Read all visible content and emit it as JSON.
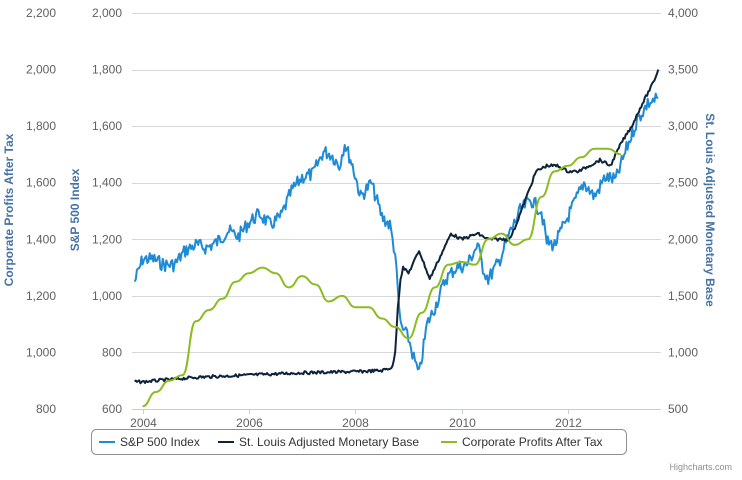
{
  "chart_data": {
    "type": "line",
    "credits": "Highcharts.com",
    "x_axis": {
      "range": [
        2003.8,
        2013.75
      ],
      "ticks": [
        2004,
        2006,
        2008,
        2010,
        2012
      ],
      "tick_labels": [
        "2004",
        "2006",
        "2008",
        "2010",
        "2012"
      ]
    },
    "y_axes": [
      {
        "id": "profits",
        "title": "Corporate Profits After Tax",
        "range": [
          800,
          2200
        ],
        "ticks": [
          800,
          1000,
          1200,
          1400,
          1600,
          1800,
          2000,
          2200
        ],
        "tick_labels": [
          "800",
          "1,000",
          "1,200",
          "1,400",
          "1,600",
          "1,800",
          "2,000",
          "2,200"
        ],
        "color": "#4572A7"
      },
      {
        "id": "sp500",
        "title": "S&P 500 Index",
        "range": [
          600,
          2000
        ],
        "ticks": [
          600,
          800,
          1000,
          1200,
          1400,
          1600,
          1800,
          2000
        ],
        "tick_labels": [
          "600",
          "800",
          "1,000",
          "1,200",
          "1,400",
          "1,600",
          "1,800",
          "2,000"
        ],
        "color": "#4572A7"
      },
      {
        "id": "base",
        "title": "St. Louis Adjusted Monetary Base",
        "range": [
          500,
          4000
        ],
        "ticks": [
          500,
          1000,
          1500,
          2000,
          2500,
          3000,
          3500,
          4000
        ],
        "tick_labels": [
          "500",
          "1,000",
          "1,500",
          "2,000",
          "2,500",
          "3,000",
          "3,500",
          "4,000"
        ],
        "color": "#4572A7",
        "opposite": true
      }
    ],
    "grid": true,
    "legend_position": "bottom-center",
    "series": [
      {
        "name": "S&P 500 Index",
        "axis": "sp500",
        "color": "#1f8ad6",
        "x": [
          2003.85,
          2004.0,
          2004.2,
          2004.4,
          2004.6,
          2004.8,
          2005.0,
          2005.2,
          2005.4,
          2005.6,
          2005.8,
          2006.0,
          2006.2,
          2006.4,
          2006.6,
          2006.8,
          2007.0,
          2007.2,
          2007.4,
          2007.55,
          2007.7,
          2007.8,
          2007.95,
          2008.1,
          2008.3,
          2008.5,
          2008.65,
          2008.75,
          2008.8,
          2008.85,
          2008.9,
          2009.0,
          2009.1,
          2009.2,
          2009.35,
          2009.5,
          2009.7,
          2009.9,
          2010.1,
          2010.3,
          2010.4,
          2010.5,
          2010.7,
          2010.9,
          2011.1,
          2011.3,
          2011.5,
          2011.6,
          2011.75,
          2011.9,
          2012.1,
          2012.3,
          2012.5,
          2012.7,
          2012.9,
          2013.1,
          2013.3,
          2013.5,
          2013.6,
          2013.7
        ],
        "values": [
          1050,
          1130,
          1130,
          1110,
          1110,
          1160,
          1180,
          1170,
          1190,
          1230,
          1210,
          1260,
          1290,
          1250,
          1280,
          1370,
          1420,
          1430,
          1510,
          1500,
          1460,
          1540,
          1460,
          1350,
          1400,
          1280,
          1250,
          1150,
          1010,
          900,
          880,
          850,
          780,
          720,
          900,
          960,
          1060,
          1100,
          1110,
          1180,
          1100,
          1060,
          1120,
          1220,
          1300,
          1340,
          1300,
          1190,
          1180,
          1240,
          1320,
          1400,
          1350,
          1420,
          1410,
          1520,
          1620,
          1680,
          1690,
          1700
        ]
      },
      {
        "name": "St. Louis Adjusted Monetary Base",
        "axis": "base",
        "color": "#0d233a",
        "x": [
          2003.85,
          2004.0,
          2004.5,
          2005.0,
          2005.5,
          2006.0,
          2006.5,
          2007.0,
          2007.5,
          2008.0,
          2008.5,
          2008.7,
          2008.75,
          2008.8,
          2008.85,
          2008.9,
          2009.0,
          2009.2,
          2009.4,
          2009.6,
          2009.8,
          2010.0,
          2010.3,
          2010.5,
          2010.7,
          2010.9,
          2011.0,
          2011.2,
          2011.4,
          2011.6,
          2011.8,
          2012.0,
          2012.2,
          2012.4,
          2012.6,
          2012.8,
          2013.0,
          2013.2,
          2013.4,
          2013.6,
          2013.7
        ],
        "values": [
          740,
          740,
          760,
          780,
          790,
          800,
          810,
          820,
          825,
          830,
          840,
          870,
          1000,
          1400,
          1650,
          1750,
          1700,
          1900,
          1650,
          1850,
          2050,
          2000,
          2050,
          2000,
          2000,
          2000,
          2100,
          2350,
          2600,
          2650,
          2650,
          2600,
          2600,
          2650,
          2700,
          2650,
          2850,
          3000,
          3200,
          3380,
          3500
        ]
      },
      {
        "name": "Corporate Profits After Tax",
        "axis": "profits",
        "color": "#8bbc21",
        "x": [
          2004.0,
          2004.25,
          2004.5,
          2004.75,
          2005.0,
          2005.25,
          2005.5,
          2005.75,
          2006.0,
          2006.25,
          2006.5,
          2006.75,
          2007.0,
          2007.25,
          2007.5,
          2007.75,
          2008.0,
          2008.25,
          2008.5,
          2008.75,
          2009.0,
          2009.25,
          2009.5,
          2009.75,
          2010.0,
          2010.25,
          2010.5,
          2010.75,
          2011.0,
          2011.25,
          2011.5,
          2011.75,
          2012.0,
          2012.25,
          2012.5,
          2012.75,
          2013.0
        ],
        "values": [
          810,
          860,
          900,
          920,
          1110,
          1150,
          1190,
          1250,
          1280,
          1300,
          1280,
          1230,
          1270,
          1240,
          1180,
          1200,
          1160,
          1160,
          1120,
          1090,
          1050,
          1140,
          1230,
          1310,
          1320,
          1310,
          1400,
          1420,
          1380,
          1400,
          1550,
          1640,
          1660,
          1690,
          1720,
          1720,
          1700
        ]
      }
    ]
  }
}
